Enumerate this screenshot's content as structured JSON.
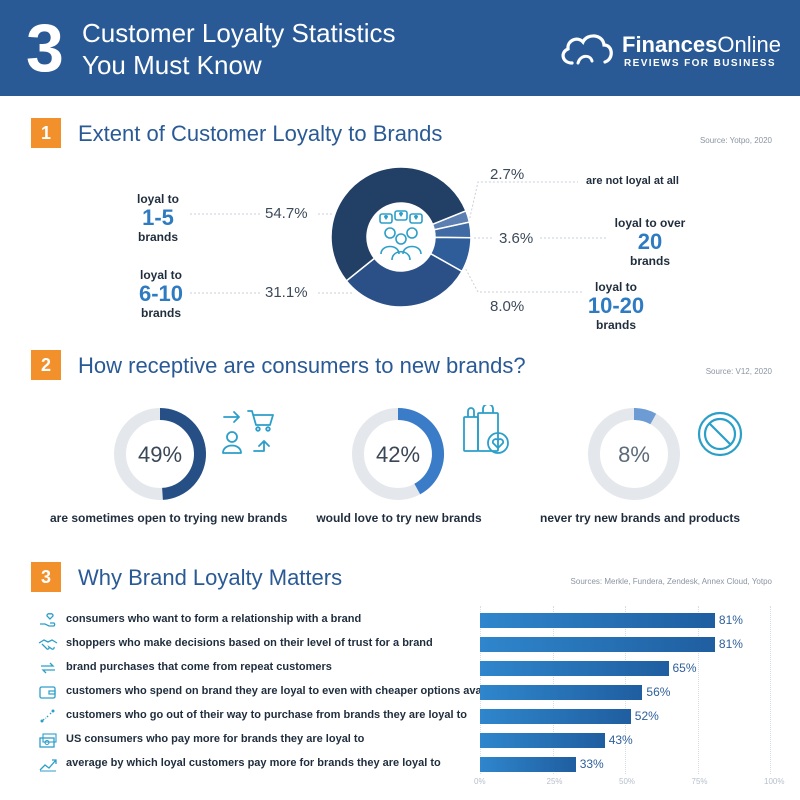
{
  "header": {
    "number": "3",
    "title_line1": "Customer Loyalty Statistics",
    "title_line2": "You Must Know",
    "brand_name_bold": "Finances",
    "brand_name_rest": "Online",
    "brand_tag": "REVIEWS FOR BUSINESS",
    "bg_color": "#2a5a96"
  },
  "section1": {
    "number": "1",
    "title": "Extent of Customer Loyalty to Brands",
    "source": "Source: Yotpo, 2020",
    "left_labels": [
      {
        "top": "loyal to",
        "big": "1-5",
        "bottom": "brands"
      },
      {
        "top": "loyal to",
        "big": "6-10",
        "bottom": "brands"
      }
    ],
    "right_labels": {
      "not_loyal": "are not loyal at all",
      "over20": {
        "top": "loyal to over",
        "big": "20",
        "bottom": "brands"
      },
      "ten20": {
        "top": "loyal to",
        "big": "10-20",
        "bottom": "brands"
      }
    },
    "percent_labels": [
      "54.7%",
      "31.1%",
      "2.7%",
      "3.6%",
      "8.0%"
    ]
  },
  "section2": {
    "number": "2",
    "title": "How receptive are consumers to new brands?",
    "source": "Source: V12, 2020",
    "gauges": [
      {
        "value": 49,
        "label_value": "49%",
        "caption": "are sometimes open to trying new brands",
        "color": "#264f86",
        "icon": "shopping-switch-icon"
      },
      {
        "value": 42,
        "label_value": "42%",
        "caption": "would love to try new brands",
        "color": "#3a7cc8",
        "icon": "shopping-bags-icon"
      },
      {
        "value": 8,
        "label_value": "8%",
        "caption": "never try new brands and products",
        "color": "#6d9bd4",
        "icon": "prohibited-icon"
      }
    ]
  },
  "section3": {
    "number": "3",
    "title": "Why Brand Loyalty Matters",
    "source": "Sources: Merkle, Fundera, Zendesk, Annex Cloud, Yotpo",
    "rows": [
      {
        "label": "consumers who want to form a relationship with a brand",
        "value_label": "81%",
        "icon": "hand-heart-icon"
      },
      {
        "label": "shoppers who make decisions based on their level of trust for a brand",
        "value_label": "81%",
        "icon": "handshake-icon"
      },
      {
        "label": "brand purchases that come from repeat customers",
        "value_label": "65%",
        "icon": "repeat-arrows-icon"
      },
      {
        "label": "customers who spend on brand they are loyal to even with cheaper options available",
        "value_label": "56%",
        "icon": "wallet-icon"
      },
      {
        "label": "customers who go out of their way to purchase from brands they are loyal to",
        "value_label": "52%",
        "icon": "path-route-icon"
      },
      {
        "label": "US consumers who pay more for brands they are loyal to",
        "value_label": "43%",
        "icon": "money-stack-icon"
      },
      {
        "label": "average by which loyal customers pay more for brands they are loyal to",
        "value_label": "33%",
        "icon": "growth-chart-icon"
      }
    ]
  },
  "chart_data": [
    {
      "type": "pie",
      "title": "Extent of Customer Loyalty to Brands",
      "categories": [
        "loyal to 1-5 brands",
        "loyal to 6-10 brands",
        "are not loyal at all",
        "loyal to over 20 brands",
        "loyal to 10-20 brands"
      ],
      "values": [
        54.7,
        31.1,
        2.7,
        3.6,
        8.0
      ],
      "colors": [
        "#223f66",
        "#2b5088",
        "#5a7fb0",
        "#3f6aa3",
        "#2e5d9a"
      ]
    },
    {
      "type": "pie",
      "title": "How receptive are consumers to new brands?",
      "categories": [
        "are sometimes open to trying new brands",
        "would love to try new brands",
        "never try new brands and products"
      ],
      "values": [
        49,
        42,
        8
      ]
    },
    {
      "type": "bar",
      "title": "Why Brand Loyalty Matters",
      "orientation": "horizontal",
      "categories": [
        "consumers who want to form a relationship with a brand",
        "shoppers who make decisions based on their level of trust for a brand",
        "brand purchases that come from repeat customers",
        "customers who spend on brand they are loyal to even with cheaper options available",
        "customers who go out of their way to purchase from brands they are loyal to",
        "US consumers who pay more for brands they are loyal to",
        "average by which loyal customers pay more for brands they are loyal to"
      ],
      "values": [
        81,
        81,
        65,
        56,
        52,
        43,
        33
      ],
      "xlim": [
        0,
        100
      ],
      "ticks": [
        "0%",
        "25%",
        "50%",
        "75%",
        "100%"
      ],
      "grid": true
    }
  ]
}
